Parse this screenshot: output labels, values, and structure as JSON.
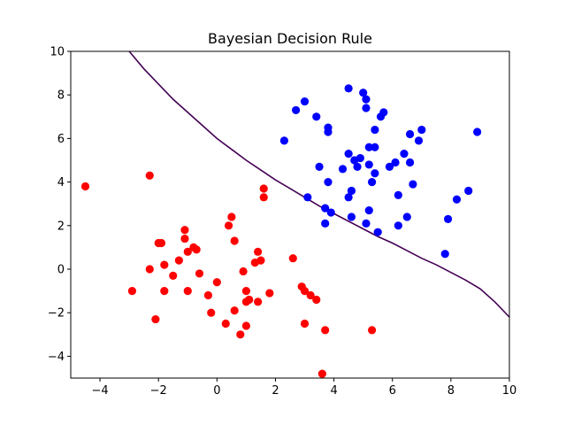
{
  "chart_data": {
    "type": "scatter",
    "title": "Bayesian Decision Rule",
    "xlabel": "",
    "ylabel": "",
    "xlim": [
      -5,
      10
    ],
    "ylim": [
      -5,
      10
    ],
    "xticks": [
      -4,
      -2,
      0,
      2,
      4,
      6,
      8,
      10
    ],
    "yticks": [
      -4,
      -2,
      0,
      2,
      4,
      6,
      8,
      10
    ],
    "grid": false,
    "colors": {
      "red": "#ff0000",
      "blue": "#0000ff",
      "boundary": "#440154"
    },
    "series": [
      {
        "color": "red",
        "points": [
          [
            -4.5,
            3.8
          ],
          [
            -2.3,
            4.3
          ],
          [
            -2.9,
            -1.0
          ],
          [
            -2.3,
            0.0
          ],
          [
            -2.1,
            -2.3
          ],
          [
            -2.0,
            1.2
          ],
          [
            -1.9,
            1.2
          ],
          [
            -1.8,
            0.2
          ],
          [
            -1.8,
            -1.0
          ],
          [
            -1.5,
            -0.3
          ],
          [
            -1.3,
            0.4
          ],
          [
            -1.1,
            1.8
          ],
          [
            -1.1,
            1.4
          ],
          [
            -1.0,
            0.8
          ],
          [
            -1.0,
            -1.0
          ],
          [
            -0.8,
            1.0
          ],
          [
            -0.7,
            0.9
          ],
          [
            -0.6,
            -0.2
          ],
          [
            -0.3,
            -1.2
          ],
          [
            -0.2,
            -2.0
          ],
          [
            0.0,
            -0.6
          ],
          [
            0.3,
            -2.5
          ],
          [
            0.4,
            2.0
          ],
          [
            0.5,
            2.4
          ],
          [
            0.6,
            -1.9
          ],
          [
            0.6,
            1.3
          ],
          [
            0.8,
            -3.0
          ],
          [
            0.9,
            -0.1
          ],
          [
            1.0,
            -2.6
          ],
          [
            1.0,
            -1.0
          ],
          [
            1.1,
            -1.4
          ],
          [
            1.0,
            -1.5
          ],
          [
            1.3,
            0.3
          ],
          [
            1.4,
            0.8
          ],
          [
            1.4,
            -1.5
          ],
          [
            1.5,
            0.4
          ],
          [
            1.6,
            3.7
          ],
          [
            1.6,
            3.3
          ],
          [
            1.8,
            -1.1
          ],
          [
            2.6,
            0.5
          ],
          [
            2.9,
            -0.8
          ],
          [
            3.0,
            -1.0
          ],
          [
            3.0,
            -2.5
          ],
          [
            3.2,
            -1.2
          ],
          [
            3.4,
            -1.4
          ],
          [
            3.6,
            -4.8
          ],
          [
            3.7,
            -2.8
          ],
          [
            5.3,
            -2.8
          ]
        ]
      },
      {
        "color": "blue",
        "points": [
          [
            2.3,
            5.9
          ],
          [
            2.7,
            7.3
          ],
          [
            3.0,
            7.7
          ],
          [
            3.1,
            3.3
          ],
          [
            3.4,
            7.0
          ],
          [
            3.5,
            4.7
          ],
          [
            3.7,
            2.8
          ],
          [
            3.7,
            2.1
          ],
          [
            3.8,
            6.5
          ],
          [
            3.8,
            6.3
          ],
          [
            3.9,
            2.6
          ],
          [
            3.8,
            4.0
          ],
          [
            4.3,
            4.6
          ],
          [
            4.5,
            8.3
          ],
          [
            4.5,
            5.3
          ],
          [
            4.5,
            3.3
          ],
          [
            4.6,
            3.6
          ],
          [
            4.6,
            2.4
          ],
          [
            4.7,
            5.0
          ],
          [
            4.8,
            4.7
          ],
          [
            4.9,
            5.1
          ],
          [
            5.0,
            8.1
          ],
          [
            5.1,
            7.8
          ],
          [
            5.1,
            7.4
          ],
          [
            5.1,
            2.1
          ],
          [
            5.2,
            5.6
          ],
          [
            5.2,
            4.8
          ],
          [
            5.2,
            2.7
          ],
          [
            5.3,
            4.0
          ],
          [
            5.4,
            6.4
          ],
          [
            5.4,
            5.6
          ],
          [
            5.4,
            4.4
          ],
          [
            5.5,
            1.7
          ],
          [
            5.6,
            7.0
          ],
          [
            5.7,
            7.2
          ],
          [
            5.9,
            4.7
          ],
          [
            6.1,
            4.9
          ],
          [
            6.2,
            3.4
          ],
          [
            6.2,
            2.0
          ],
          [
            6.4,
            5.3
          ],
          [
            6.5,
            2.4
          ],
          [
            6.6,
            6.2
          ],
          [
            6.6,
            4.9
          ],
          [
            6.7,
            3.9
          ],
          [
            6.9,
            5.9
          ],
          [
            7.0,
            6.4
          ],
          [
            7.8,
            0.7
          ],
          [
            7.9,
            2.3
          ],
          [
            8.2,
            3.2
          ],
          [
            8.6,
            3.6
          ],
          [
            8.9,
            6.3
          ]
        ]
      }
    ],
    "boundary": [
      [
        -3.0,
        10.0
      ],
      [
        -2.5,
        9.2
      ],
      [
        -2.0,
        8.5
      ],
      [
        -1.5,
        7.8
      ],
      [
        -1.0,
        7.2
      ],
      [
        -0.5,
        6.6
      ],
      [
        0.0,
        6.0
      ],
      [
        0.5,
        5.5
      ],
      [
        1.0,
        5.0
      ],
      [
        1.5,
        4.55
      ],
      [
        2.0,
        4.1
      ],
      [
        2.5,
        3.7
      ],
      [
        3.0,
        3.3
      ],
      [
        3.5,
        2.9
      ],
      [
        4.0,
        2.55
      ],
      [
        4.5,
        2.2
      ],
      [
        5.0,
        1.85
      ],
      [
        5.5,
        1.5
      ],
      [
        6.0,
        1.2
      ],
      [
        6.5,
        0.85
      ],
      [
        7.0,
        0.5
      ],
      [
        7.5,
        0.2
      ],
      [
        8.0,
        -0.15
      ],
      [
        8.5,
        -0.5
      ],
      [
        9.0,
        -0.9
      ],
      [
        9.5,
        -1.5
      ],
      [
        10.0,
        -2.2
      ]
    ]
  }
}
